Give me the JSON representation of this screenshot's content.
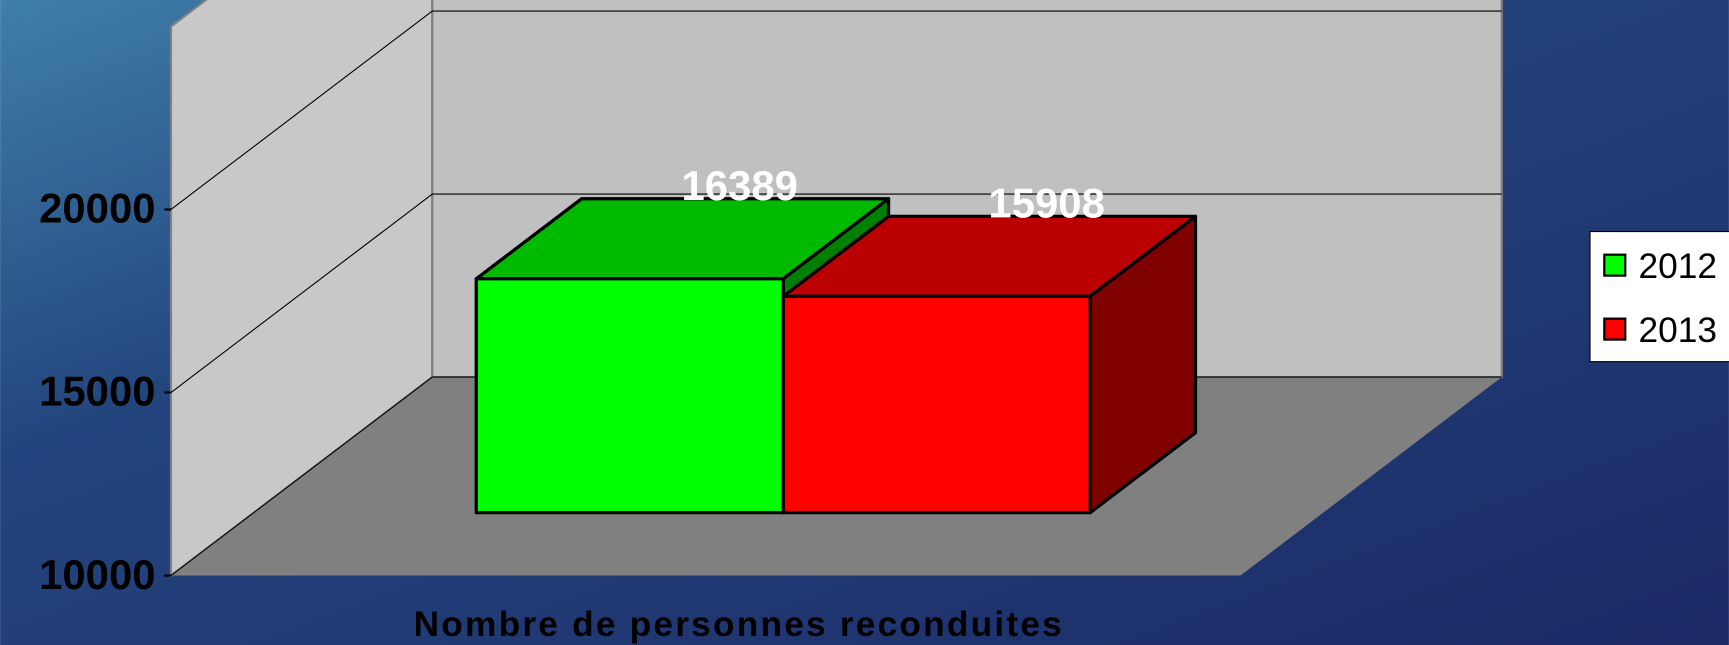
{
  "chart_data": {
    "type": "bar3d",
    "categories": [
      "Nombre de personnes reconduites"
    ],
    "series": [
      {
        "name": "2012",
        "color": "#00ff00",
        "values": [
          16389
        ]
      },
      {
        "name": "2013",
        "color": "#ff0000",
        "values": [
          15908
        ]
      }
    ],
    "ylim": [
      10000,
      25000
    ],
    "yticks": [
      10000,
      15000,
      20000
    ],
    "grid": true,
    "legend": "right"
  }
}
